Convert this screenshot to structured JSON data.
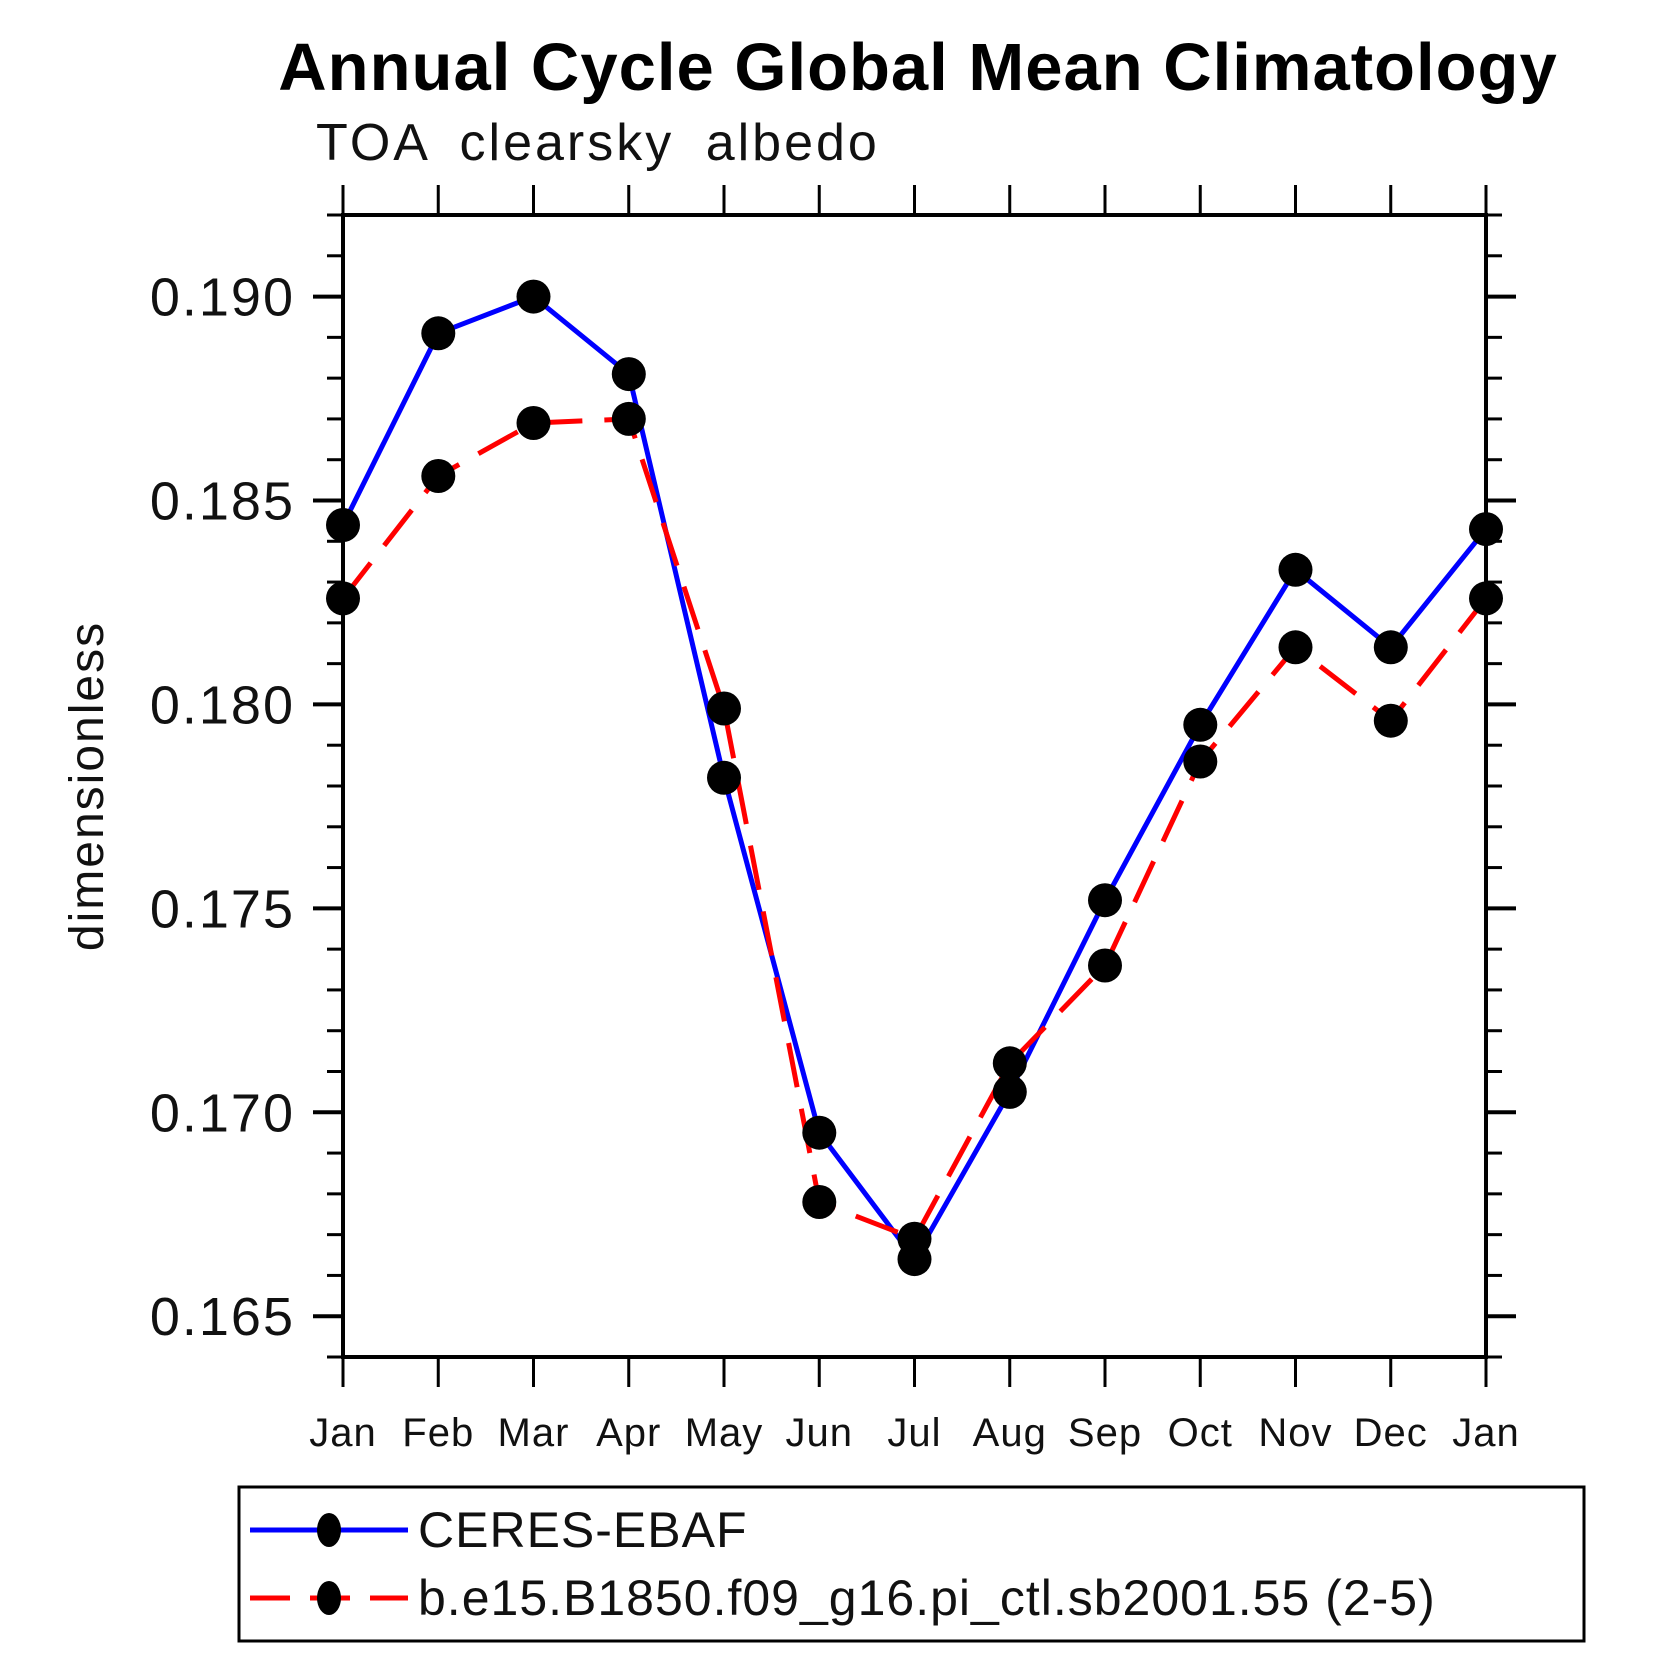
{
  "title": "Annual Cycle Global Mean Climatology",
  "subtitle": "TOA clearsky albedo",
  "ylabel": "dimensionless",
  "colors": {
    "obs_line": "#0000ff",
    "model_line": "#ff0000",
    "marker": "#000000",
    "axis": "#000000",
    "background": "#ffffff"
  },
  "chart_data": {
    "type": "line",
    "title": "Annual Cycle Global Mean Climatology",
    "subtitle": "TOA clearsky albedo",
    "xlabel": "",
    "ylabel": "dimensionless",
    "categories": [
      "Jan",
      "Feb",
      "Mar",
      "Apr",
      "May",
      "Jun",
      "Jul",
      "Aug",
      "Sep",
      "Oct",
      "Nov",
      "Dec",
      "Jan"
    ],
    "series": [
      {
        "name": "CERES-EBAF",
        "color": "#0000ff",
        "line_style": "solid",
        "marker": "filled-circle",
        "marker_color": "#000000",
        "values": [
          0.1844,
          0.1891,
          0.19,
          0.1881,
          0.1782,
          0.1695,
          0.1664,
          0.1705,
          0.1752,
          0.1795,
          0.1833,
          0.1814,
          0.1843
        ]
      },
      {
        "name": "b.e15.B1850.f09_g16.pi_ctl.sb2001.55 (2-5)",
        "color": "#ff0000",
        "line_style": "dashed",
        "marker": "filled-circle",
        "marker_color": "#000000",
        "values": [
          0.1826,
          0.1856,
          0.1869,
          0.187,
          0.1799,
          0.1678,
          0.1669,
          0.1712,
          0.1736,
          0.1786,
          0.1814,
          0.1796,
          0.1826
        ]
      }
    ],
    "ylim": [
      0.164,
      0.192
    ],
    "ytick_major": [
      0.165,
      0.17,
      0.175,
      0.18,
      0.185,
      0.19
    ],
    "ytick_labels": [
      "0.165",
      "0.170",
      "0.175",
      "0.180",
      "0.185",
      "0.190"
    ],
    "ytick_minor_step": 0.001,
    "grid": false,
    "legend_position": "below-box"
  }
}
